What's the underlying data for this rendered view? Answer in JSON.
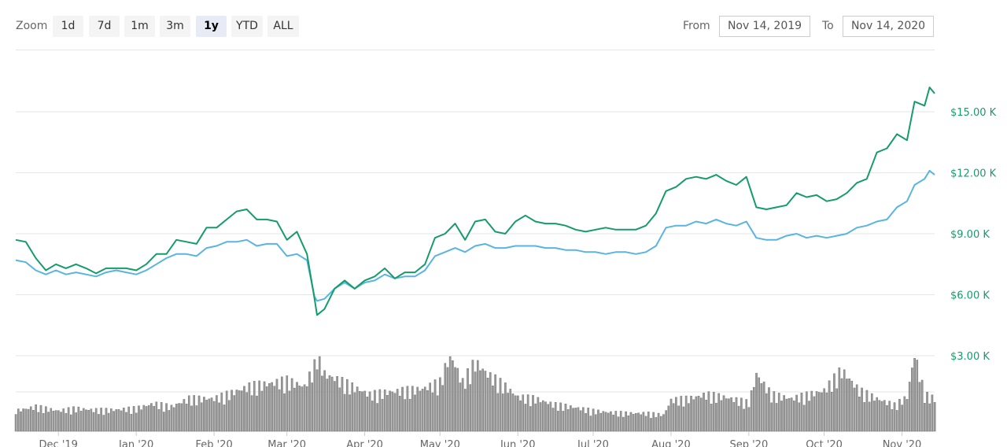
{
  "toolbar": {
    "zoom_label": "Zoom",
    "zoom_buttons": [
      "1d",
      "7d",
      "1m",
      "3m",
      "1y",
      "YTD",
      "ALL"
    ],
    "active_zoom": "1y",
    "from_label": "From",
    "from_value": "Nov 14, 2019",
    "to_label": "To",
    "to_value": "Nov 14, 2020"
  },
  "colors": {
    "price_line": "#169b6b",
    "secondary_line": "#5ab4e0",
    "volume_bars": "#9a9a9a",
    "axis_label": "#169b6b"
  },
  "chart_data": {
    "type": "line",
    "x_start": "2019-11-14",
    "x_end": "2020-11-14",
    "x_tick_labels": [
      "Dec '19",
      "Jan '20",
      "Feb '20",
      "Mar '20",
      "Apr '20",
      "May '20",
      "Jun '20",
      "Jul '20",
      "Aug '20",
      "Sep '20",
      "Oct '20",
      "Nov '20"
    ],
    "x_tick_dates": [
      "2019-12-01",
      "2020-01-01",
      "2020-02-01",
      "2020-03-01",
      "2020-04-01",
      "2020-05-01",
      "2020-06-01",
      "2020-07-01",
      "2020-08-01",
      "2020-09-01",
      "2020-10-01",
      "2020-11-01"
    ],
    "y_tick_labels": [
      "$3.00 K",
      "$6.00 K",
      "$9.00 K",
      "$12.00 K",
      "$15.00 K"
    ],
    "y_tick_values": [
      3000,
      6000,
      9000,
      12000,
      15000
    ],
    "ylim": [
      3000,
      17000
    ],
    "grid": true,
    "series": [
      {
        "x": [
          "2019-11-14",
          "2019-11-18",
          "2019-11-22",
          "2019-11-26",
          "2019-11-30",
          "2019-12-04",
          "2019-12-08",
          "2019-12-12",
          "2019-12-16",
          "2019-12-20",
          "2019-12-24",
          "2019-12-28",
          "2020-01-01",
          "2020-01-05",
          "2020-01-09",
          "2020-01-13",
          "2020-01-17",
          "2020-01-21",
          "2020-01-25",
          "2020-01-29",
          "2020-02-02",
          "2020-02-06",
          "2020-02-10",
          "2020-02-14",
          "2020-02-18",
          "2020-02-22",
          "2020-02-26",
          "2020-03-01",
          "2020-03-05",
          "2020-03-09",
          "2020-03-12",
          "2020-03-13",
          "2020-03-16",
          "2020-03-20",
          "2020-03-24",
          "2020-03-28",
          "2020-04-01",
          "2020-04-05",
          "2020-04-09",
          "2020-04-13",
          "2020-04-17",
          "2020-04-21",
          "2020-04-25",
          "2020-04-29",
          "2020-05-03",
          "2020-05-07",
          "2020-05-11",
          "2020-05-15",
          "2020-05-19",
          "2020-05-23",
          "2020-05-27",
          "2020-05-31",
          "2020-06-04",
          "2020-06-08",
          "2020-06-12",
          "2020-06-16",
          "2020-06-20",
          "2020-06-24",
          "2020-06-28",
          "2020-07-02",
          "2020-07-06",
          "2020-07-10",
          "2020-07-14",
          "2020-07-18",
          "2020-07-22",
          "2020-07-26",
          "2020-07-30",
          "2020-08-03",
          "2020-08-07",
          "2020-08-11",
          "2020-08-15",
          "2020-08-19",
          "2020-08-23",
          "2020-08-27",
          "2020-08-31",
          "2020-09-04",
          "2020-09-08",
          "2020-09-12",
          "2020-09-16",
          "2020-09-20",
          "2020-09-24",
          "2020-09-28",
          "2020-10-02",
          "2020-10-06",
          "2020-10-10",
          "2020-10-14",
          "2020-10-18",
          "2020-10-22",
          "2020-10-26",
          "2020-10-30",
          "2020-11-03",
          "2020-11-06",
          "2020-11-10",
          "2020-11-12",
          "2020-11-14"
        ],
        "values": [
          8700,
          8600,
          7800,
          7200,
          7500,
          7300,
          7500,
          7300,
          7050,
          7300,
          7300,
          7300,
          7200,
          7500,
          8000,
          8000,
          8700,
          8600,
          8500,
          9300,
          9300,
          9700,
          10100,
          10200,
          9700,
          9700,
          9600,
          8700,
          9100,
          8000,
          5800,
          5000,
          5300,
          6300,
          6700,
          6300,
          6700,
          6900,
          7300,
          6800,
          7100,
          7100,
          7500,
          8800,
          9000,
          9500,
          8700,
          9600,
          9700,
          9100,
          9000,
          9600,
          9900,
          9600,
          9500,
          9500,
          9400,
          9200,
          9100,
          9200,
          9300,
          9200,
          9200,
          9200,
          9400,
          10000,
          11100,
          11300,
          11700,
          11800,
          11700,
          11900,
          11600,
          11400,
          11800,
          10300,
          10200,
          10300,
          10400,
          11000,
          10800,
          10900,
          10600,
          10700,
          11000,
          11500,
          11700,
          13000,
          13200,
          13900,
          13600,
          15500,
          15300,
          16200,
          15900
        ]
      },
      {
        "x": [
          "2019-11-14",
          "2019-11-18",
          "2019-11-22",
          "2019-11-26",
          "2019-11-30",
          "2019-12-04",
          "2019-12-08",
          "2019-12-12",
          "2019-12-16",
          "2019-12-20",
          "2019-12-24",
          "2019-12-28",
          "2020-01-01",
          "2020-01-05",
          "2020-01-09",
          "2020-01-13",
          "2020-01-17",
          "2020-01-21",
          "2020-01-25",
          "2020-01-29",
          "2020-02-02",
          "2020-02-06",
          "2020-02-10",
          "2020-02-14",
          "2020-02-18",
          "2020-02-22",
          "2020-02-26",
          "2020-03-01",
          "2020-03-05",
          "2020-03-09",
          "2020-03-12",
          "2020-03-13",
          "2020-03-16",
          "2020-03-20",
          "2020-03-24",
          "2020-03-28",
          "2020-04-01",
          "2020-04-05",
          "2020-04-09",
          "2020-04-13",
          "2020-04-17",
          "2020-04-21",
          "2020-04-25",
          "2020-04-29",
          "2020-05-03",
          "2020-05-07",
          "2020-05-11",
          "2020-05-15",
          "2020-05-19",
          "2020-05-23",
          "2020-05-27",
          "2020-05-31",
          "2020-06-04",
          "2020-06-08",
          "2020-06-12",
          "2020-06-16",
          "2020-06-20",
          "2020-06-24",
          "2020-06-28",
          "2020-07-02",
          "2020-07-06",
          "2020-07-10",
          "2020-07-14",
          "2020-07-18",
          "2020-07-22",
          "2020-07-26",
          "2020-07-30",
          "2020-08-03",
          "2020-08-07",
          "2020-08-11",
          "2020-08-15",
          "2020-08-19",
          "2020-08-23",
          "2020-08-27",
          "2020-08-31",
          "2020-09-04",
          "2020-09-08",
          "2020-09-12",
          "2020-09-16",
          "2020-09-20",
          "2020-09-24",
          "2020-09-28",
          "2020-10-02",
          "2020-10-06",
          "2020-10-10",
          "2020-10-14",
          "2020-10-18",
          "2020-10-22",
          "2020-10-26",
          "2020-10-30",
          "2020-11-03",
          "2020-11-06",
          "2020-11-10",
          "2020-11-12",
          "2020-11-14"
        ],
        "values": [
          7700,
          7600,
          7200,
          7000,
          7200,
          7000,
          7100,
          7000,
          6900,
          7100,
          7200,
          7100,
          7000,
          7200,
          7500,
          7800,
          8000,
          8000,
          7900,
          8300,
          8400,
          8600,
          8600,
          8700,
          8400,
          8500,
          8500,
          7900,
          8000,
          7700,
          5900,
          5700,
          5800,
          6300,
          6600,
          6300,
          6600,
          6700,
          7000,
          6800,
          6900,
          6900,
          7200,
          7900,
          8100,
          8300,
          8100,
          8400,
          8500,
          8300,
          8300,
          8400,
          8400,
          8400,
          8300,
          8300,
          8200,
          8200,
          8100,
          8100,
          8000,
          8100,
          8100,
          8000,
          8100,
          8400,
          9300,
          9400,
          9400,
          9600,
          9500,
          9700,
          9500,
          9400,
          9600,
          8800,
          8700,
          8700,
          8900,
          9000,
          8800,
          8900,
          8800,
          8900,
          9000,
          9300,
          9400,
          9600,
          9700,
          10300,
          10600,
          11400,
          11700,
          12100,
          11900
        ]
      }
    ],
    "volume": {
      "x": [
        "2019-11-14",
        "2019-11-22",
        "2019-12-01",
        "2019-12-08",
        "2019-12-15",
        "2019-12-22",
        "2020-01-01",
        "2020-01-08",
        "2020-01-15",
        "2020-01-22",
        "2020-02-01",
        "2020-02-08",
        "2020-02-15",
        "2020-02-22",
        "2020-03-01",
        "2020-03-08",
        "2020-03-12",
        "2020-03-13",
        "2020-03-16",
        "2020-03-20",
        "2020-03-27",
        "2020-04-03",
        "2020-04-10",
        "2020-04-17",
        "2020-04-24",
        "2020-05-01",
        "2020-05-05",
        "2020-05-10",
        "2020-05-15",
        "2020-05-20",
        "2020-05-27",
        "2020-06-01",
        "2020-06-08",
        "2020-06-15",
        "2020-06-22",
        "2020-07-01",
        "2020-07-08",
        "2020-07-15",
        "2020-07-22",
        "2020-07-29",
        "2020-08-01",
        "2020-08-08",
        "2020-08-15",
        "2020-08-22",
        "2020-09-01",
        "2020-09-04",
        "2020-09-10",
        "2020-09-18",
        "2020-09-25",
        "2020-10-01",
        "2020-10-08",
        "2020-10-15",
        "2020-10-22",
        "2020-10-29",
        "2020-11-03",
        "2020-11-06",
        "2020-11-10",
        "2020-11-14"
      ],
      "values": [
        0.25,
        0.3,
        0.25,
        0.28,
        0.26,
        0.26,
        0.28,
        0.34,
        0.3,
        0.4,
        0.4,
        0.47,
        0.55,
        0.58,
        0.62,
        0.55,
        0.8,
        1.0,
        0.7,
        0.65,
        0.55,
        0.45,
        0.48,
        0.5,
        0.52,
        0.6,
        0.95,
        0.6,
        0.85,
        0.7,
        0.55,
        0.42,
        0.4,
        0.33,
        0.3,
        0.25,
        0.23,
        0.22,
        0.22,
        0.2,
        0.38,
        0.4,
        0.45,
        0.42,
        0.35,
        0.7,
        0.45,
        0.4,
        0.45,
        0.5,
        0.75,
        0.5,
        0.4,
        0.32,
        0.42,
        0.95,
        0.45,
        0.4
      ]
    }
  }
}
